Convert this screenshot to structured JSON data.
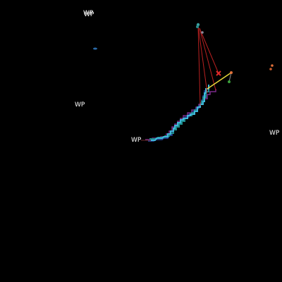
{
  "waypoints": {
    "label": "WP"
  },
  "colors": {
    "background": "#000000",
    "label": "#ffffff",
    "track_cyan": "#3fb6d8",
    "track_teal": "#1e8c8c",
    "track_purple": "#7a2a8a",
    "track_blue": "#2a4aa8",
    "line_red": "#b82020",
    "line_yellow": "#e8d83a",
    "marker_orange": "#e0703a",
    "marker_green": "#3aa03a",
    "marker_red": "#e02a2a"
  }
}
